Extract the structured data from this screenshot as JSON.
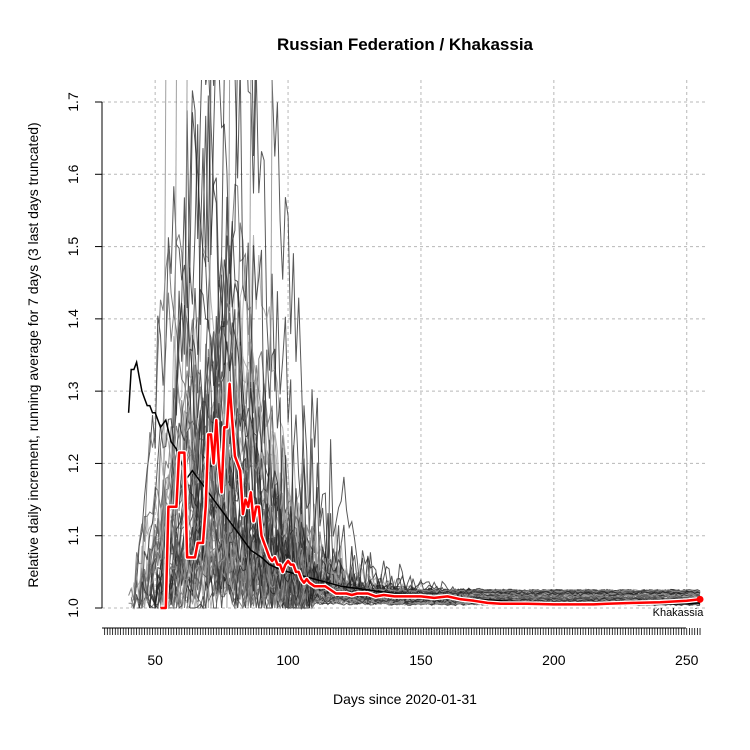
{
  "chart_data": {
    "type": "line",
    "title": "Russian Federation / Khakassia",
    "xlabel": "Days since 2020-01-31",
    "ylabel": "Relative daily increment, running average for 7 days (3 last days truncated)",
    "xlim": [
      30,
      258
    ],
    "ylim": [
      1.0,
      1.7
    ],
    "x_ticks": [
      50,
      100,
      150,
      200,
      250
    ],
    "y_ticks": [
      1.0,
      1.1,
      1.2,
      1.3,
      1.4,
      1.5,
      1.6,
      1.7
    ],
    "grid": true,
    "highlight_series": {
      "name": "Khakassia",
      "color": "#ff0000",
      "x": [
        52,
        53,
        54,
        55,
        57,
        58,
        59,
        60,
        61,
        62,
        63,
        64,
        65,
        66,
        67,
        68,
        69,
        70,
        71,
        72,
        73,
        74,
        75,
        76,
        77,
        78,
        79,
        80,
        81,
        82,
        83,
        84,
        85,
        86,
        87,
        88,
        89,
        90,
        91,
        92,
        93,
        94,
        95,
        96,
        97,
        98,
        99,
        100,
        101,
        102,
        103,
        104,
        105,
        106,
        107,
        108,
        110,
        112,
        114,
        116,
        118,
        120,
        122,
        124,
        126,
        128,
        130,
        133,
        136,
        140,
        145,
        150,
        155,
        160,
        165,
        170,
        175,
        180,
        190,
        200,
        210,
        215,
        220,
        230,
        240,
        250,
        255
      ],
      "values": [
        1.0,
        1.0,
        1.0,
        1.14,
        1.14,
        1.14,
        1.215,
        1.215,
        1.215,
        1.07,
        1.07,
        1.07,
        1.07,
        1.09,
        1.09,
        1.09,
        1.14,
        1.24,
        1.24,
        1.2,
        1.26,
        1.2,
        1.16,
        1.25,
        1.25,
        1.31,
        1.26,
        1.21,
        1.2,
        1.19,
        1.13,
        1.15,
        1.14,
        1.16,
        1.12,
        1.14,
        1.14,
        1.1,
        1.09,
        1.08,
        1.07,
        1.065,
        1.07,
        1.06,
        1.06,
        1.05,
        1.06,
        1.065,
        1.06,
        1.06,
        1.05,
        1.05,
        1.04,
        1.035,
        1.04,
        1.035,
        1.03,
        1.03,
        1.03,
        1.025,
        1.02,
        1.02,
        1.02,
        1.018,
        1.02,
        1.02,
        1.02,
        1.016,
        1.018,
        1.016,
        1.016,
        1.016,
        1.014,
        1.016,
        1.012,
        1.01,
        1.007,
        1.006,
        1.006,
        1.005,
        1.005,
        1.005,
        1.006,
        1.007,
        1.008,
        1.01,
        1.012
      ]
    },
    "country_series": {
      "name": "Russian Federation",
      "color": "#000000",
      "x": [
        40,
        41,
        42,
        43,
        44,
        45,
        46,
        47,
        48,
        49,
        50,
        52,
        54,
        56,
        58,
        60,
        62,
        64,
        66,
        68,
        70,
        72,
        74,
        76,
        78,
        80,
        82,
        84,
        86,
        88,
        90,
        93,
        96,
        100,
        105,
        110,
        115,
        120,
        130,
        140,
        150,
        160,
        170,
        180,
        190,
        200,
        210,
        220,
        230,
        240,
        250,
        255
      ],
      "values": [
        1.27,
        1.33,
        1.33,
        1.34,
        1.32,
        1.3,
        1.29,
        1.28,
        1.28,
        1.27,
        1.27,
        1.25,
        1.26,
        1.23,
        1.22,
        1.2,
        1.18,
        1.19,
        1.18,
        1.17,
        1.16,
        1.15,
        1.14,
        1.13,
        1.12,
        1.11,
        1.1,
        1.09,
        1.08,
        1.075,
        1.07,
        1.06,
        1.055,
        1.05,
        1.045,
        1.04,
        1.035,
        1.03,
        1.025,
        1.02,
        1.018,
        1.015,
        1.012,
        1.01,
        1.008,
        1.007,
        1.006,
        1.005,
        1.005,
        1.005,
        1.006,
        1.007
      ]
    },
    "point_label": "Khakassia"
  }
}
